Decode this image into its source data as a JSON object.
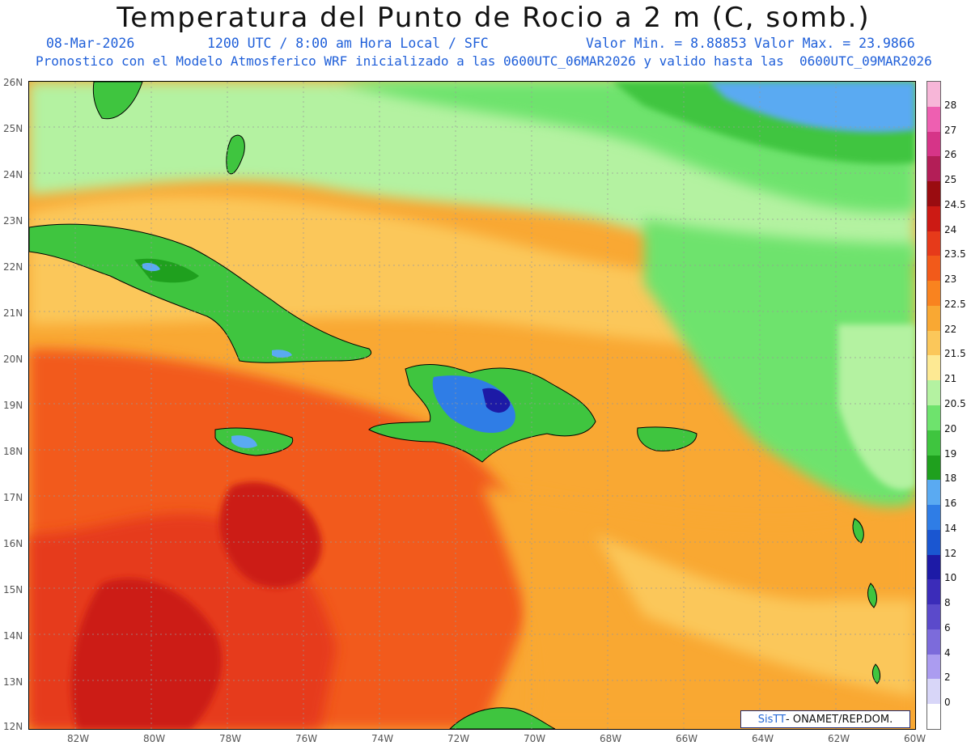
{
  "title": "Temperatura del Punto de Rocio a 2 m (C, somb.)",
  "date": "08-Mar-2026",
  "time_info": "1200 UTC / 8:00 am Hora Local / SFC",
  "min_label": "Valor Min. = 8.88853",
  "max_label": "Valor Max. = 23.9866",
  "forecast_text": "Pronostico con el Modelo Atmosferico WRF inicializado a las 0600UTC_06MAR2026 y valido hasta las  0600UTC_09MAR2026",
  "credit": {
    "brand": "SisTT",
    "org": " - ONAMET/REP.DOM."
  },
  "lat_labels": [
    "26N",
    "25N",
    "24N",
    "23N",
    "22N",
    "21N",
    "20N",
    "19N",
    "18N",
    "17N",
    "16N",
    "15N",
    "14N",
    "13N",
    "12N"
  ],
  "lon_labels": [
    "82W",
    "80W",
    "78W",
    "76W",
    "74W",
    "72W",
    "70W",
    "68W",
    "66W",
    "64W",
    "62W",
    "60W"
  ],
  "colorbar": {
    "labels": [
      "28",
      "27",
      "26",
      "25",
      "24.5",
      "24",
      "23.5",
      "23",
      "22.5",
      "22",
      "21.5",
      "21",
      "20.5",
      "20",
      "19",
      "18",
      "16",
      "14",
      "12",
      "10",
      "8",
      "6",
      "4",
      "2",
      "0"
    ],
    "colors": [
      "#f7b6d8",
      "#ee5fb1",
      "#d63488",
      "#b31e57",
      "#9a0c10",
      "#cc1a14",
      "#e63a1a",
      "#f25a1a",
      "#f9831f",
      "#f9a833",
      "#fbc75a",
      "#fde993",
      "#b4f2a1",
      "#6ee36d",
      "#3fc53f",
      "#1fa01e",
      "#5aaaf2",
      "#2f7de6",
      "#1a56d1",
      "#1d1aa6",
      "#3b2cb9",
      "#5b4acb",
      "#7c6bdb",
      "#ab9cf0",
      "#d8d6f8",
      "#ffffff"
    ]
  }
}
